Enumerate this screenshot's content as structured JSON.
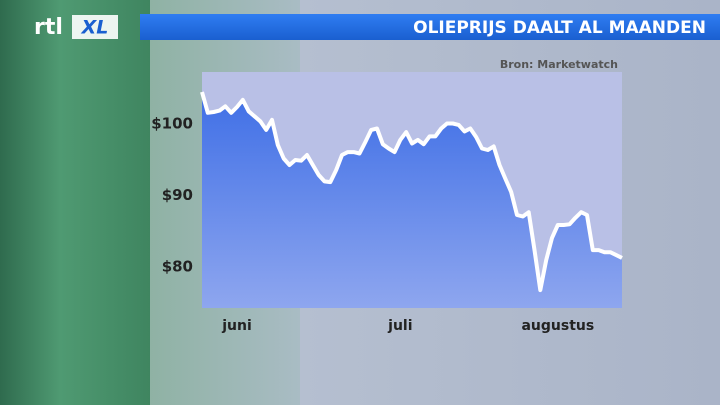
{
  "logo": [
    "rtl",
    "XL"
  ],
  "chart_data": {
    "type": "line",
    "title": "OLIEPRIJS DAALT AL MAANDEN",
    "source": "Bron: Marketwatch",
    "values": [
      104.5,
      101.6,
      101.7,
      101.9,
      102.5,
      101.6,
      102.4,
      103.4,
      101.8,
      101.1,
      100.4,
      99.2,
      100.6,
      97.1,
      95.2,
      94.3,
      95.0,
      94.9,
      95.7,
      94.3,
      92.9,
      92.0,
      91.9,
      93.6,
      95.7,
      96.1,
      96.1,
      95.9,
      97.5,
      99.2,
      99.4,
      97.2,
      96.6,
      96.1,
      97.8,
      98.9,
      97.3,
      97.8,
      97.2,
      98.3,
      98.3,
      99.4,
      100.1,
      100.1,
      99.9,
      99.0,
      99.4,
      98.2,
      96.6,
      96.4,
      96.9,
      94.3,
      92.4,
      90.5,
      87.3,
      87.1,
      87.7,
      82.4,
      76.8,
      81.0,
      84.1,
      85.9,
      85.9,
      86.0,
      86.9,
      87.7,
      87.3,
      82.4,
      82.4,
      82.1,
      82.1,
      81.7,
      81.3
    ],
    "color": "#ffffff",
    "xlim": [
      0,
      72
    ],
    "xticks": [
      {
        "value": 6,
        "label": "juni"
      },
      {
        "value": 34,
        "label": "juli"
      },
      {
        "value": 61,
        "label": "augustus"
      }
    ],
    "ylim": [
      74.3,
      107.3
    ],
    "yticks": [
      {
        "value": 80,
        "label": "$80"
      },
      {
        "value": 90,
        "label": "$90"
      },
      {
        "value": 100,
        "label": "$100"
      }
    ]
  }
}
